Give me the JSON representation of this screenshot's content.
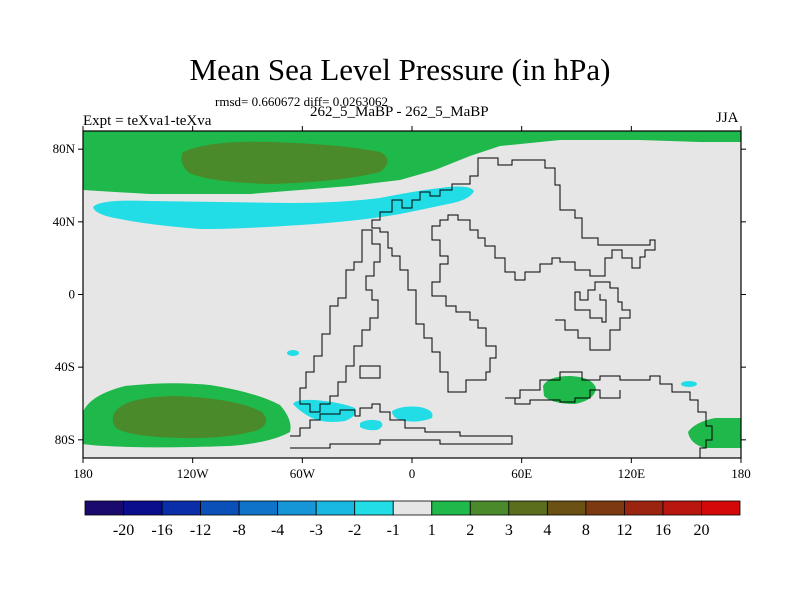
{
  "title": "Mean Sea Level Pressure (in hPa)",
  "stats_text": "rmsd= 0.660672 diff= 0.0263062",
  "runs_label": "262_5_MaBP - 262_5_MaBP",
  "expt_label": "Expt = teXva1-teXva",
  "season": "JJA",
  "map": {
    "lon_ticks": [
      "180",
      "120W",
      "60W",
      "0",
      "60E",
      "120E",
      "180"
    ],
    "lat_ticks": [
      "80N",
      "40N",
      "0",
      "40S",
      "80S"
    ]
  },
  "colorbar": {
    "labels": [
      "-20",
      "-16",
      "-12",
      "-8",
      "-4",
      "-3",
      "-2",
      "-1",
      "1",
      "2",
      "3",
      "4",
      "8",
      "12",
      "16",
      "20"
    ],
    "colors": [
      "#1b0a6e",
      "#0b0e8c",
      "#0a2ea8",
      "#0b4fb8",
      "#0f74c9",
      "#1696d6",
      "#19b8e3",
      "#22dde6",
      "#e6e6e6",
      "#1fb84a",
      "#4a8a2a",
      "#5a6e1e",
      "#6b5214",
      "#7d3a10",
      "#9b2410",
      "#b8160e",
      "#d40808"
    ]
  },
  "fill_colors": {
    "background": "#e6e6e6",
    "positive_1_2": "#1fb84a",
    "positive_2_3": "#4a8a2a",
    "negative_1_2": "#22dde6"
  }
}
